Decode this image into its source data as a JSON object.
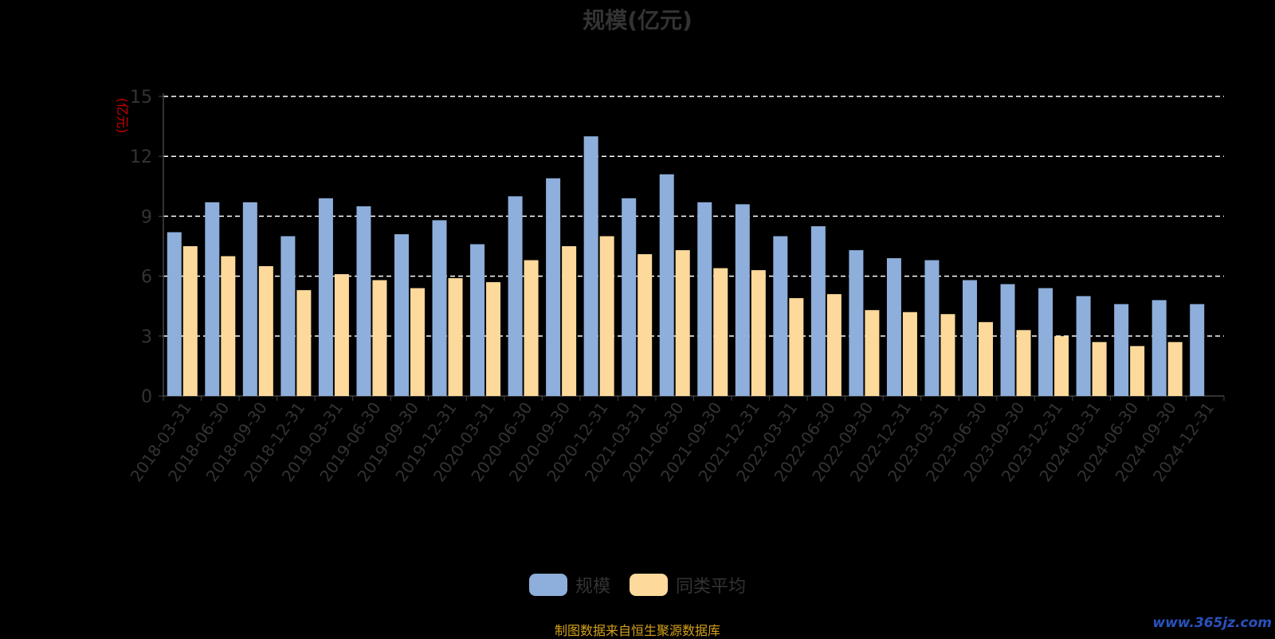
{
  "chart_data": {
    "type": "bar",
    "title": "规模(亿元)",
    "ylabel": "(亿元)",
    "ylim": [
      0,
      15
    ],
    "yticks": [
      0,
      3,
      6,
      9,
      12,
      15
    ],
    "grid": true,
    "categories": [
      "2018-03-31",
      "2018-06-30",
      "2018-09-30",
      "2018-12-31",
      "2019-03-31",
      "2019-06-30",
      "2019-09-30",
      "2019-12-31",
      "2020-03-31",
      "2020-06-30",
      "2020-09-30",
      "2020-12-31",
      "2021-03-31",
      "2021-06-30",
      "2021-09-30",
      "2021-12-31",
      "2022-03-31",
      "2022-06-30",
      "2022-09-30",
      "2022-12-31",
      "2023-03-31",
      "2023-06-30",
      "2023-09-30",
      "2023-12-31",
      "2024-03-31",
      "2024-06-30",
      "2024-09-30",
      "2024-12-31"
    ],
    "series": [
      {
        "name": "规模",
        "color": "#8eaedb",
        "values": [
          8.2,
          9.7,
          9.7,
          8.0,
          9.9,
          9.5,
          8.1,
          8.8,
          7.6,
          10.0,
          10.9,
          13.0,
          9.9,
          11.1,
          9.7,
          9.6,
          8.0,
          8.5,
          7.3,
          6.9,
          6.8,
          5.8,
          5.6,
          5.4,
          5.0,
          4.6,
          4.8,
          4.6
        ]
      },
      {
        "name": "同类平均",
        "color": "#fdd99b",
        "values": [
          7.5,
          7.0,
          6.5,
          5.3,
          6.1,
          5.8,
          5.4,
          5.9,
          5.7,
          6.8,
          7.5,
          8.0,
          7.1,
          7.3,
          6.4,
          6.3,
          4.9,
          5.1,
          4.3,
          4.2,
          4.1,
          3.7,
          3.3,
          3.0,
          2.7,
          2.5,
          2.7,
          null
        ]
      }
    ],
    "legend_position": "bottom"
  },
  "source_note": "制图数据来自恒生聚源数据库",
  "watermark": "www.365jz.com"
}
